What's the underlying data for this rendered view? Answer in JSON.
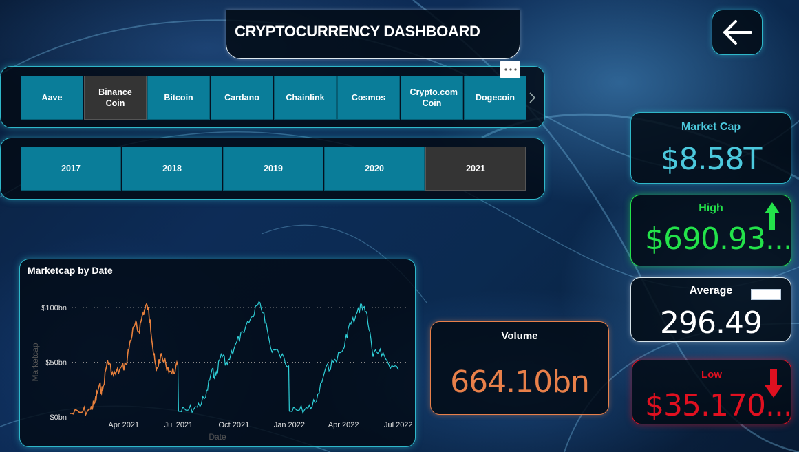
{
  "title": "CRYPTOCURRENCY DASHBOARD",
  "coin_slicer": {
    "items": [
      {
        "label": "Aave",
        "selected": false
      },
      {
        "label": "Binance Coin",
        "selected": true
      },
      {
        "label": "Bitcoin",
        "selected": false
      },
      {
        "label": "Cardano",
        "selected": false
      },
      {
        "label": "Chainlink",
        "selected": false
      },
      {
        "label": "Cosmos",
        "selected": false
      },
      {
        "label": "Crypto.com Coin",
        "selected": false
      },
      {
        "label": "Dogecoin",
        "selected": false
      }
    ],
    "more_icon": "ellipsis-icon",
    "scroll_icon": "chevron-right-icon"
  },
  "year_slicer": {
    "items": [
      {
        "label": "2017",
        "selected": false
      },
      {
        "label": "2018",
        "selected": false
      },
      {
        "label": "2019",
        "selected": false
      },
      {
        "label": "2020",
        "selected": false
      },
      {
        "label": "2021",
        "selected": true
      }
    ]
  },
  "back_icon": "arrow-left-icon",
  "kpis": {
    "market_cap": {
      "label": "Market Cap",
      "value": "$8.58T",
      "color": "#4cc9dd"
    },
    "high": {
      "label": "High",
      "value": "$690.93...",
      "color": "#23e24a",
      "icon": "arrow-up-icon"
    },
    "average": {
      "label": "Average",
      "value": "296.49",
      "color": "#ffffff"
    },
    "low": {
      "label": "Low",
      "value": "$35.170...",
      "color": "#e01020",
      "icon": "arrow-down-icon"
    },
    "volume": {
      "label": "Volume",
      "value": "664.10bn",
      "color": "#e8804a"
    }
  },
  "chart_data": {
    "type": "line",
    "title": "Marketcap by Date",
    "xlabel": "Date",
    "ylabel": "Marketcap",
    "y_ticks": [
      "$0bn",
      "$50bn",
      "$100bn"
    ],
    "ylim": [
      0,
      100
    ],
    "x_ticks": [
      "Apr 2021",
      "Jul 2021",
      "Oct 2021",
      "Jan 2022",
      "Apr 2022",
      "Jul 2022"
    ],
    "grid": true,
    "highlight_color": "#e8803c",
    "base_color": "#2fd0d8",
    "series": [
      {
        "color": "#e8803c",
        "x": [
          "2021-01-01",
          "2021-01-20",
          "2021-02-05",
          "2021-02-12",
          "2021-02-19",
          "2021-02-25",
          "2021-03-05",
          "2021-03-15",
          "2021-03-25",
          "2021-04-05",
          "2021-04-12",
          "2021-04-20",
          "2021-04-26",
          "2021-05-03",
          "2021-05-10",
          "2021-05-15",
          "2021-05-20",
          "2021-05-25",
          "2021-06-01",
          "2021-06-10",
          "2021-06-20",
          "2021-06-30"
        ],
        "values": [
          3,
          4,
          7,
          13,
          28,
          24,
          52,
          38,
          43,
          48,
          70,
          85,
          78,
          95,
          102,
          88,
          60,
          42,
          55,
          48,
          40,
          47
        ]
      },
      {
        "color": "#2fd0d8",
        "x": [
          "2021-07-01",
          "2021-07-15",
          "2021-08-01",
          "2021-08-15",
          "2021-08-25",
          "2021-09-01",
          "2021-09-10",
          "2021-09-20",
          "2021-10-01",
          "2021-10-15",
          "2021-11-01",
          "2021-11-10",
          "2021-11-20",
          "2021-12-01",
          "2021-12-15",
          "2021-12-31"
        ],
        "values": [
          5,
          6,
          9,
          18,
          42,
          38,
          58,
          48,
          62,
          78,
          92,
          103,
          95,
          63,
          58,
          47
        ],
        "x2": [
          "2022-01-01",
          "2022-01-15",
          "2022-02-01",
          "2022-02-15",
          "2022-03-01",
          "2022-03-15",
          "2022-04-01",
          "2022-04-10",
          "2022-04-20",
          "2022-05-01",
          "2022-05-10",
          "2022-05-20",
          "2022-06-01",
          "2022-06-15",
          "2022-07-01"
        ],
        "values2": [
          5,
          6,
          8,
          14,
          42,
          50,
          62,
          83,
          90,
          103,
          94,
          55,
          62,
          48,
          43
        ]
      }
    ]
  }
}
